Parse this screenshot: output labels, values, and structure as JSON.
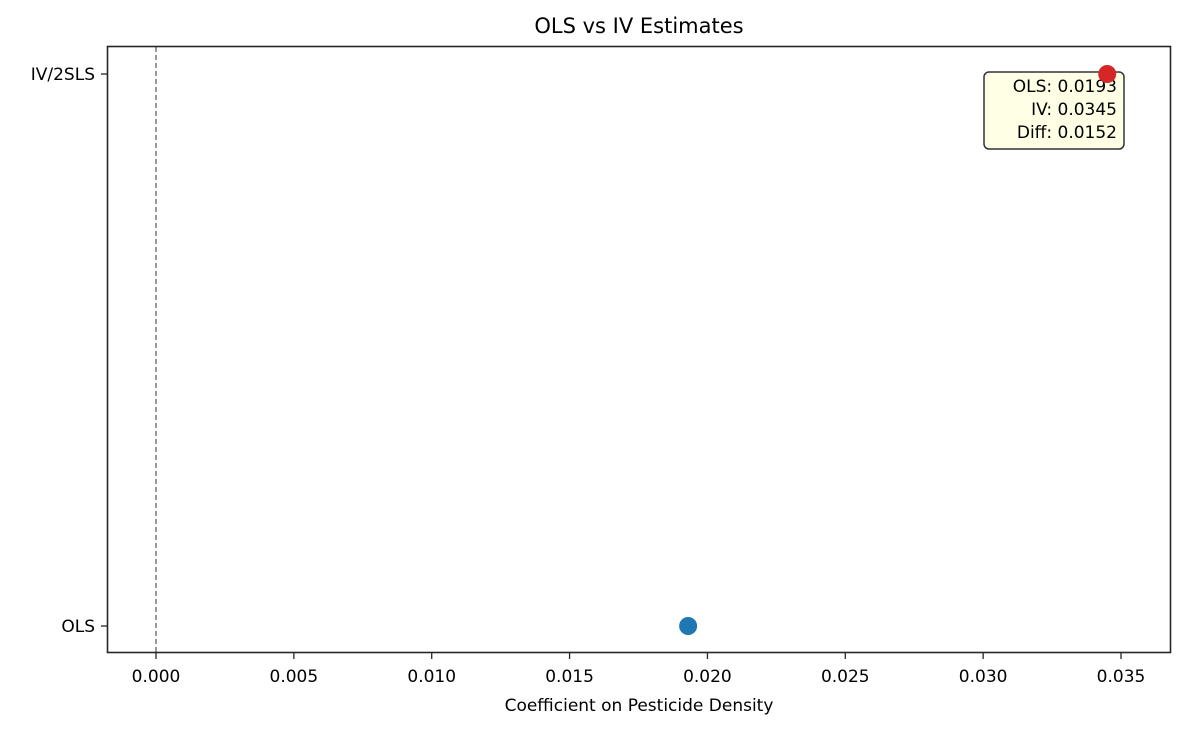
{
  "chart_data": {
    "type": "scatter",
    "title": "OLS vs IV Estimates",
    "xlabel": "Coefficient on Pesticide Density",
    "ylabel": "",
    "categories": [
      "OLS",
      "IV/2SLS"
    ],
    "series": [
      {
        "name": "OLS",
        "category": "OLS",
        "x": 0.0193,
        "color": "#1f77b4"
      },
      {
        "name": "IV/2SLS",
        "category": "IV/2SLS",
        "x": 0.0345,
        "color": "#d62728"
      }
    ],
    "xlim": [
      -0.0017,
      0.0362
    ],
    "xticks": [
      0.0,
      0.005,
      0.01,
      0.015,
      0.02,
      0.025,
      0.03,
      0.035
    ],
    "xtick_labels": [
      "0.000",
      "0.005",
      "0.010",
      "0.015",
      "0.020",
      "0.025",
      "0.030",
      "0.035"
    ],
    "reference_line": {
      "x": 0.0,
      "style": "dashed",
      "color": "#555555"
    },
    "grid": false,
    "legend": null,
    "annotation": {
      "lines": [
        "OLS: 0.0193",
        "IV: 0.0345",
        "Diff: 0.0152"
      ],
      "position": "top-right",
      "background": "#ffffe6",
      "border": "#333333"
    }
  }
}
